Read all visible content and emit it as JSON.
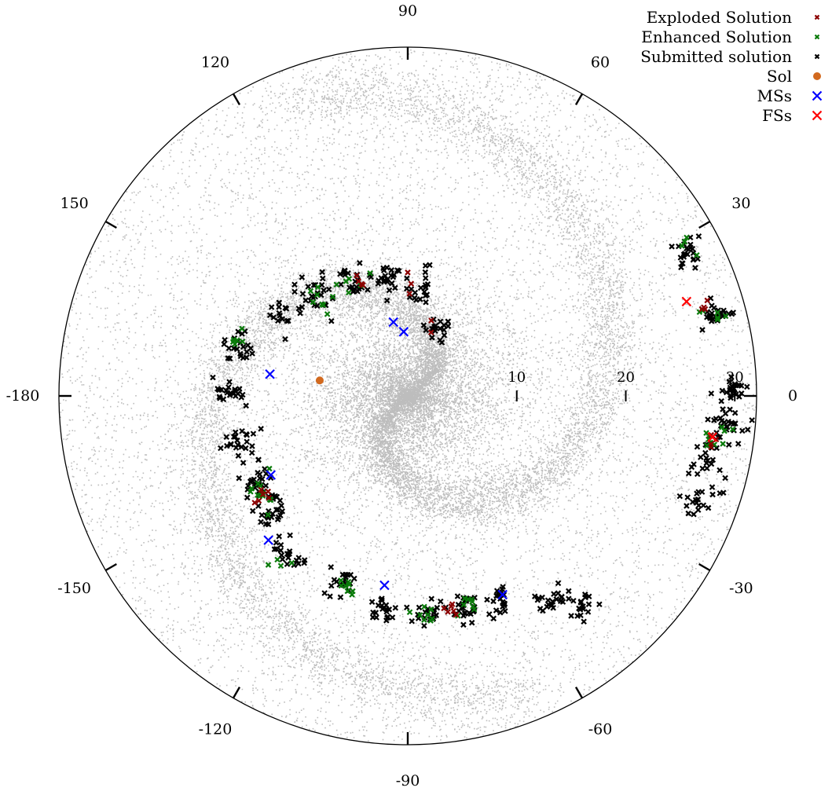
{
  "chart_data": {
    "type": "scatter",
    "coordinate_system": "polar",
    "angular_axis": {
      "unit": "degrees",
      "zero_direction": "right",
      "orientation": "counterclockwise",
      "tick_values": [
        0,
        30,
        60,
        90,
        120,
        150,
        180,
        -150,
        -120,
        -90,
        -60,
        -30
      ],
      "tick_labels": [
        "0",
        "30",
        "60",
        "90",
        "120",
        "150",
        "-180",
        "-150",
        "-120",
        "-90",
        "-60",
        "-30"
      ]
    },
    "radial_axis": {
      "range": [
        0,
        32
      ],
      "tick_values": [
        10,
        20,
        30
      ],
      "tick_labels": [
        "10",
        "20",
        "30"
      ]
    },
    "grid": false,
    "legend": {
      "placement": "top-right",
      "entries": [
        {
          "label": "Exploded Solution",
          "color": "#8b0000",
          "marker": "small-x"
        },
        {
          "label": "Enhanced Solution",
          "color": "#0a7a0a",
          "marker": "small-x"
        },
        {
          "label": "Submitted solution",
          "color": "#000000",
          "marker": "small-x"
        },
        {
          "label": "Sol",
          "color": "#d2691e",
          "marker": "circle"
        },
        {
          "label": "MSs",
          "color": "#0000ff",
          "marker": "x"
        },
        {
          "label": "FSs",
          "color": "#ff0000",
          "marker": "x"
        }
      ]
    },
    "background_stars_color": "#bdbdbd",
    "series": [
      {
        "name": "Sol",
        "color": "#d2691e",
        "points": [
          {
            "angle": 170,
            "r": 8.2
          }
        ]
      },
      {
        "name": "MSs",
        "color": "#0000ff",
        "points": [
          {
            "angle": 101,
            "r": 6.9
          },
          {
            "angle": 93.6,
            "r": 5.9
          },
          {
            "angle": 171,
            "r": 12.8
          },
          {
            "angle": -150,
            "r": 14.5
          },
          {
            "angle": -134,
            "r": 18.4
          },
          {
            "angle": -97,
            "r": 17.5
          },
          {
            "angle": -64.5,
            "r": 20.2
          }
        ]
      },
      {
        "name": "FSs",
        "color": "#ff0000",
        "points": [
          {
            "angle": 18.7,
            "r": 27.0
          },
          {
            "angle": -7.7,
            "r": 28.2
          }
        ]
      },
      {
        "name": "Submitted solution",
        "color": "#000000",
        "clusters": [
          {
            "angle": 132,
            "r": 12.4,
            "spread": 1.6,
            "count": 24
          },
          {
            "angle": 115,
            "r": 11.6,
            "spread": 1.5,
            "count": 22
          },
          {
            "angle": 100,
            "r": 10.8,
            "spread": 1.4,
            "count": 22
          },
          {
            "angle": 83,
            "r": 10.2,
            "spread": 1.4,
            "count": 20
          },
          {
            "angle": 65,
            "r": 6.8,
            "spread": 1.3,
            "count": 18
          },
          {
            "angle": 148,
            "r": 13.6,
            "spread": 1.5,
            "count": 18
          },
          {
            "angle": 163,
            "r": 16.2,
            "spread": 1.4,
            "count": 22
          },
          {
            "angle": 178,
            "r": 16.3,
            "spread": 1.3,
            "count": 22
          },
          {
            "angle": -165,
            "r": 16.0,
            "spread": 1.4,
            "count": 22
          },
          {
            "angle": -150,
            "r": 16.0,
            "spread": 1.5,
            "count": 28
          },
          {
            "angle": -140,
            "r": 16.8,
            "spread": 1.5,
            "count": 28
          },
          {
            "angle": -128,
            "r": 18.3,
            "spread": 1.4,
            "count": 20
          },
          {
            "angle": -110,
            "r": 18.5,
            "spread": 1.4,
            "count": 20
          },
          {
            "angle": -97,
            "r": 19.7,
            "spread": 1.3,
            "count": 22
          },
          {
            "angle": -85,
            "r": 20.0,
            "spread": 1.3,
            "count": 22
          },
          {
            "angle": -75,
            "r": 20.0,
            "spread": 1.3,
            "count": 26
          },
          {
            "angle": -66,
            "r": 20.8,
            "spread": 1.3,
            "count": 22
          },
          {
            "angle": -55,
            "r": 22.8,
            "spread": 1.3,
            "count": 22
          },
          {
            "angle": -50,
            "r": 25.0,
            "spread": 1.3,
            "count": 18
          },
          {
            "angle": 2,
            "r": 29.8,
            "spread": 1.3,
            "count": 22
          },
          {
            "angle": -5,
            "r": 29.2,
            "spread": 1.5,
            "count": 30
          },
          {
            "angle": -12,
            "r": 27.8,
            "spread": 1.3,
            "count": 22
          },
          {
            "angle": -20,
            "r": 28.6,
            "spread": 1.3,
            "count": 20
          },
          {
            "angle": 15,
            "r": 29.2,
            "spread": 1.3,
            "count": 26
          },
          {
            "angle": 27,
            "r": 28.9,
            "spread": 1.2,
            "count": 24
          }
        ]
      },
      {
        "name": "Enhanced Solution",
        "color": "#0a7a0a",
        "clusters": [
          {
            "angle": 132,
            "r": 12.4,
            "spread": 1.4,
            "count": 8
          },
          {
            "angle": 116,
            "r": 11.4,
            "spread": 1.4,
            "count": 6
          },
          {
            "angle": 163,
            "r": 16.2,
            "spread": 1.2,
            "count": 6
          },
          {
            "angle": -147,
            "r": 16.2,
            "spread": 1.4,
            "count": 12
          },
          {
            "angle": -128,
            "r": 18.3,
            "spread": 1.2,
            "count": 4
          },
          {
            "angle": -107,
            "r": 18.5,
            "spread": 1.2,
            "count": 8
          },
          {
            "angle": -85,
            "r": 20.0,
            "spread": 1.2,
            "count": 8
          },
          {
            "angle": -75,
            "r": 20.0,
            "spread": 1.2,
            "count": 8
          },
          {
            "angle": -8,
            "r": 28.6,
            "spread": 1.4,
            "count": 10
          },
          {
            "angle": 15,
            "r": 29.2,
            "spread": 1.2,
            "count": 6
          },
          {
            "angle": 27,
            "r": 28.9,
            "spread": 1.2,
            "count": 4
          }
        ]
      },
      {
        "name": "Exploded Solution",
        "color": "#8b0000",
        "clusters": [
          {
            "angle": 113,
            "r": 11.3,
            "spread": 0.8,
            "count": 4
          },
          {
            "angle": 88,
            "r": 10.4,
            "spread": 0.8,
            "count": 3
          },
          {
            "angle": 69,
            "r": 6.8,
            "spread": 0.7,
            "count": 2
          },
          {
            "angle": -146,
            "r": 16.0,
            "spread": 0.9,
            "count": 6
          },
          {
            "angle": -78,
            "r": 20.0,
            "spread": 0.9,
            "count": 6
          },
          {
            "angle": -9,
            "r": 28.4,
            "spread": 0.9,
            "count": 4
          },
          {
            "angle": 17,
            "r": 28.4,
            "spread": 0.9,
            "count": 4
          }
        ]
      }
    ]
  }
}
